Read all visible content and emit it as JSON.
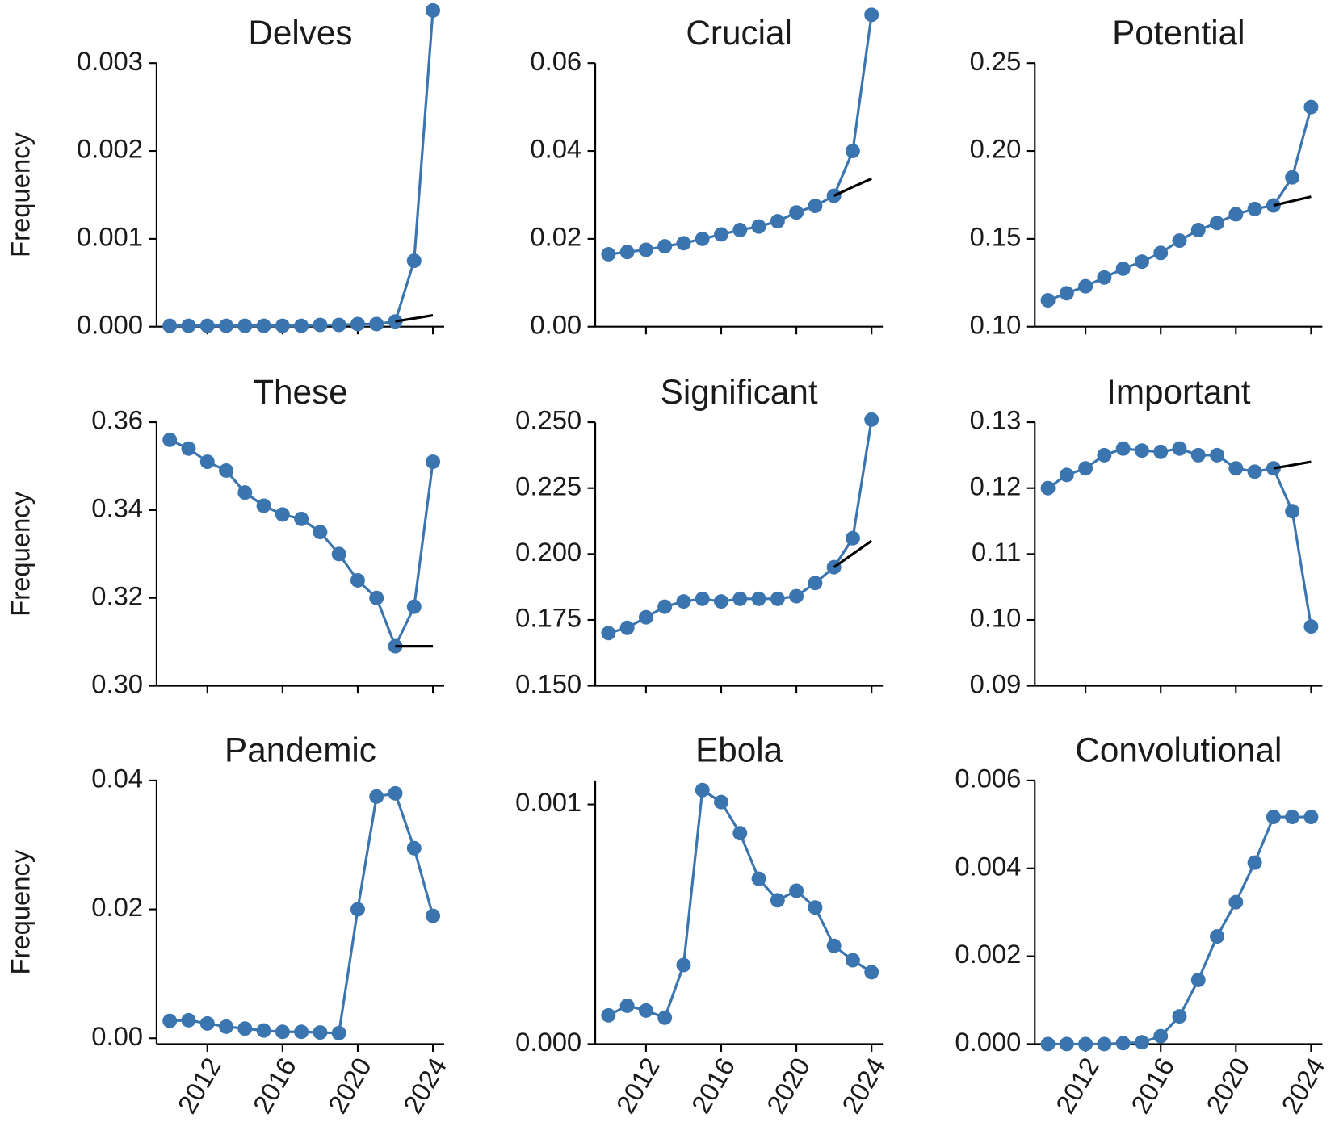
{
  "chart_data": [
    {
      "type": "line",
      "title": "Delves",
      "ylabel": "Frequency",
      "x": [
        2010,
        2011,
        2012,
        2013,
        2014,
        2015,
        2016,
        2017,
        2018,
        2019,
        2020,
        2021,
        2022,
        2023,
        2024
      ],
      "series": [
        {
          "color": "#3b75af",
          "values": [
            1e-05,
            1e-05,
            1e-05,
            1e-05,
            1e-05,
            1e-05,
            1e-05,
            1e-05,
            2e-05,
            2e-05,
            3e-05,
            3e-05,
            6e-05,
            0.00075,
            0.0036
          ]
        },
        {
          "color": "#000000",
          "values": [
            null,
            null,
            null,
            null,
            null,
            null,
            null,
            null,
            null,
            null,
            null,
            null,
            6e-05,
            9.5e-05,
            0.00013
          ]
        }
      ],
      "xlim": [
        2009.3,
        2024.6
      ],
      "ylim": [
        0,
        0.003
      ],
      "xticks": [
        2012,
        2016,
        2020,
        2024
      ],
      "yticks": [
        {
          "value": 0,
          "label": "0.000"
        },
        0.001,
        0.002,
        0.003
      ]
    },
    {
      "type": "line",
      "title": "Crucial",
      "x": [
        2010,
        2011,
        2012,
        2013,
        2014,
        2015,
        2016,
        2017,
        2018,
        2019,
        2020,
        2021,
        2022,
        2023,
        2024
      ],
      "series": [
        {
          "color": "#3b75af",
          "values": [
            0.0165,
            0.017,
            0.0175,
            0.0183,
            0.019,
            0.02,
            0.021,
            0.022,
            0.0228,
            0.024,
            0.026,
            0.0275,
            0.0298,
            0.04,
            0.071
          ]
        },
        {
          "color": "#000000",
          "values": [
            null,
            null,
            null,
            null,
            null,
            null,
            null,
            null,
            null,
            null,
            null,
            null,
            0.0298,
            0.0318,
            0.0337
          ]
        }
      ],
      "xlim": [
        2009.3,
        2024.6
      ],
      "ylim": [
        0,
        0.06
      ],
      "xticks": [
        2012,
        2016,
        2020,
        2024
      ],
      "yticks": [
        {
          "value": 0,
          "label": "0.00"
        },
        0.02,
        0.04,
        0.06
      ]
    },
    {
      "type": "line",
      "title": "Potential",
      "x": [
        2010,
        2011,
        2012,
        2013,
        2014,
        2015,
        2016,
        2017,
        2018,
        2019,
        2020,
        2021,
        2022,
        2023,
        2024
      ],
      "series": [
        {
          "color": "#3b75af",
          "values": [
            0.115,
            0.119,
            0.123,
            0.128,
            0.133,
            0.137,
            0.142,
            0.149,
            0.155,
            0.159,
            0.164,
            0.167,
            0.169,
            0.185,
            0.225
          ]
        },
        {
          "color": "#000000",
          "values": [
            null,
            null,
            null,
            null,
            null,
            null,
            null,
            null,
            null,
            null,
            null,
            null,
            0.169,
            0.1715,
            0.174
          ]
        }
      ],
      "xlim": [
        2009.3,
        2024.6
      ],
      "ylim": [
        0.1,
        0.25
      ],
      "xticks": [
        2012,
        2016,
        2020,
        2024
      ],
      "yticks": [
        {
          "value": 0.1,
          "label": "0.10"
        },
        0.15,
        {
          "value": 0.2,
          "label": "0.20"
        },
        0.25
      ]
    },
    {
      "type": "line",
      "title": "These",
      "ylabel": "Frequency",
      "x": [
        2010,
        2011,
        2012,
        2013,
        2014,
        2015,
        2016,
        2017,
        2018,
        2019,
        2020,
        2021,
        2022,
        2023,
        2024
      ],
      "series": [
        {
          "color": "#3b75af",
          "values": [
            0.356,
            0.354,
            0.351,
            0.349,
            0.344,
            0.341,
            0.339,
            0.338,
            0.335,
            0.33,
            0.324,
            0.32,
            0.309,
            0.318,
            0.351
          ]
        },
        {
          "color": "#000000",
          "values": [
            null,
            null,
            null,
            null,
            null,
            null,
            null,
            null,
            null,
            null,
            null,
            null,
            0.309,
            0.309,
            0.309
          ]
        }
      ],
      "xlim": [
        2009.3,
        2024.6
      ],
      "ylim": [
        0.3,
        0.36
      ],
      "xticks": [
        2012,
        2016,
        2020,
        2024
      ],
      "yticks": [
        {
          "value": 0.3,
          "label": "0.30"
        },
        0.32,
        0.34,
        0.36
      ]
    },
    {
      "type": "line",
      "title": "Significant",
      "x": [
        2010,
        2011,
        2012,
        2013,
        2014,
        2015,
        2016,
        2017,
        2018,
        2019,
        2020,
        2021,
        2022,
        2023,
        2024
      ],
      "series": [
        {
          "color": "#3b75af",
          "values": [
            0.17,
            0.172,
            0.176,
            0.18,
            0.182,
            0.183,
            0.182,
            0.183,
            0.183,
            0.183,
            0.184,
            0.189,
            0.195,
            0.206,
            0.251
          ]
        },
        {
          "color": "#000000",
          "values": [
            null,
            null,
            null,
            null,
            null,
            null,
            null,
            null,
            null,
            null,
            null,
            null,
            0.195,
            0.2,
            0.205
          ]
        }
      ],
      "xlim": [
        2009.3,
        2024.6
      ],
      "ylim": [
        0.15,
        0.25
      ],
      "xticks": [
        2012,
        2016,
        2020,
        2024
      ],
      "yticks": [
        {
          "value": 0.15,
          "label": "0.150"
        },
        0.175,
        {
          "value": 0.2,
          "label": "0.200"
        },
        0.225,
        {
          "value": 0.25,
          "label": "0.250"
        }
      ]
    },
    {
      "type": "line",
      "title": "Important",
      "x": [
        2010,
        2011,
        2012,
        2013,
        2014,
        2015,
        2016,
        2017,
        2018,
        2019,
        2020,
        2021,
        2022,
        2023,
        2024
      ],
      "series": [
        {
          "color": "#3b75af",
          "values": [
            0.12,
            0.122,
            0.123,
            0.125,
            0.126,
            0.1257,
            0.1255,
            0.126,
            0.125,
            0.125,
            0.123,
            0.1225,
            0.123,
            0.1165,
            0.099
          ]
        },
        {
          "color": "#000000",
          "values": [
            null,
            null,
            null,
            null,
            null,
            null,
            null,
            null,
            null,
            null,
            null,
            null,
            0.123,
            0.1235,
            0.124
          ]
        }
      ],
      "xlim": [
        2009.3,
        2024.6
      ],
      "ylim": [
        0.09,
        0.13
      ],
      "xticks": [
        2012,
        2016,
        2020,
        2024
      ],
      "yticks": [
        0.09,
        {
          "value": 0.1,
          "label": "0.10"
        },
        0.11,
        0.12,
        0.13
      ]
    },
    {
      "type": "line",
      "title": "Pandemic",
      "ylabel": "Frequency",
      "x": [
        2010,
        2011,
        2012,
        2013,
        2014,
        2015,
        2016,
        2017,
        2018,
        2019,
        2020,
        2021,
        2022,
        2023,
        2024
      ],
      "series": [
        {
          "color": "#3b75af",
          "values": [
            0.0027,
            0.0028,
            0.0023,
            0.0018,
            0.0015,
            0.0012,
            0.001,
            0.001,
            0.0009,
            0.0008,
            0.02,
            0.0375,
            0.038,
            0.0295,
            0.019
          ]
        }
      ],
      "xlim": [
        2009.3,
        2024.6
      ],
      "ylim": [
        -0.0009,
        0.04
      ],
      "xticks": [
        2012,
        2016,
        2020,
        2024
      ],
      "yticks": [
        {
          "value": 0,
          "label": "0.00"
        },
        0.02,
        0.04
      ]
    },
    {
      "type": "line",
      "title": "Ebola",
      "x": [
        2010,
        2011,
        2012,
        2013,
        2014,
        2015,
        2016,
        2017,
        2018,
        2019,
        2020,
        2021,
        2022,
        2023,
        2024
      ],
      "series": [
        {
          "color": "#3b75af",
          "values": [
            0.00012,
            0.00016,
            0.00014,
            0.00011,
            0.00033,
            0.00106,
            0.00101,
            0.00088,
            0.00069,
            0.0006,
            0.00064,
            0.00057,
            0.00041,
            0.00035,
            0.0003
          ]
        }
      ],
      "xlim": [
        2009.3,
        2024.6
      ],
      "ylim": [
        0,
        0.0011
      ],
      "xticks": [
        2012,
        2016,
        2020,
        2024
      ],
      "yticks": [
        {
          "value": 0,
          "label": "0.000"
        },
        0.001
      ]
    },
    {
      "type": "line",
      "title": "Convolutional",
      "x": [
        2010,
        2011,
        2012,
        2013,
        2014,
        2015,
        2016,
        2017,
        2018,
        2019,
        2020,
        2021,
        2022,
        2023,
        2024
      ],
      "series": [
        {
          "color": "#3b75af",
          "values": [
            0,
            0,
            0,
            0,
            2e-05,
            4e-05,
            0.00018,
            0.00063,
            0.00146,
            0.00245,
            0.00323,
            0.00413,
            0.00517,
            0.00517,
            0.00517
          ]
        }
      ],
      "xlim": [
        2009.3,
        2024.6
      ],
      "ylim": [
        0,
        0.006
      ],
      "xticks": [
        2012,
        2016,
        2020,
        2024
      ],
      "yticks": [
        {
          "value": 0,
          "label": "0.000"
        },
        0.002,
        0.004,
        0.006
      ]
    }
  ]
}
